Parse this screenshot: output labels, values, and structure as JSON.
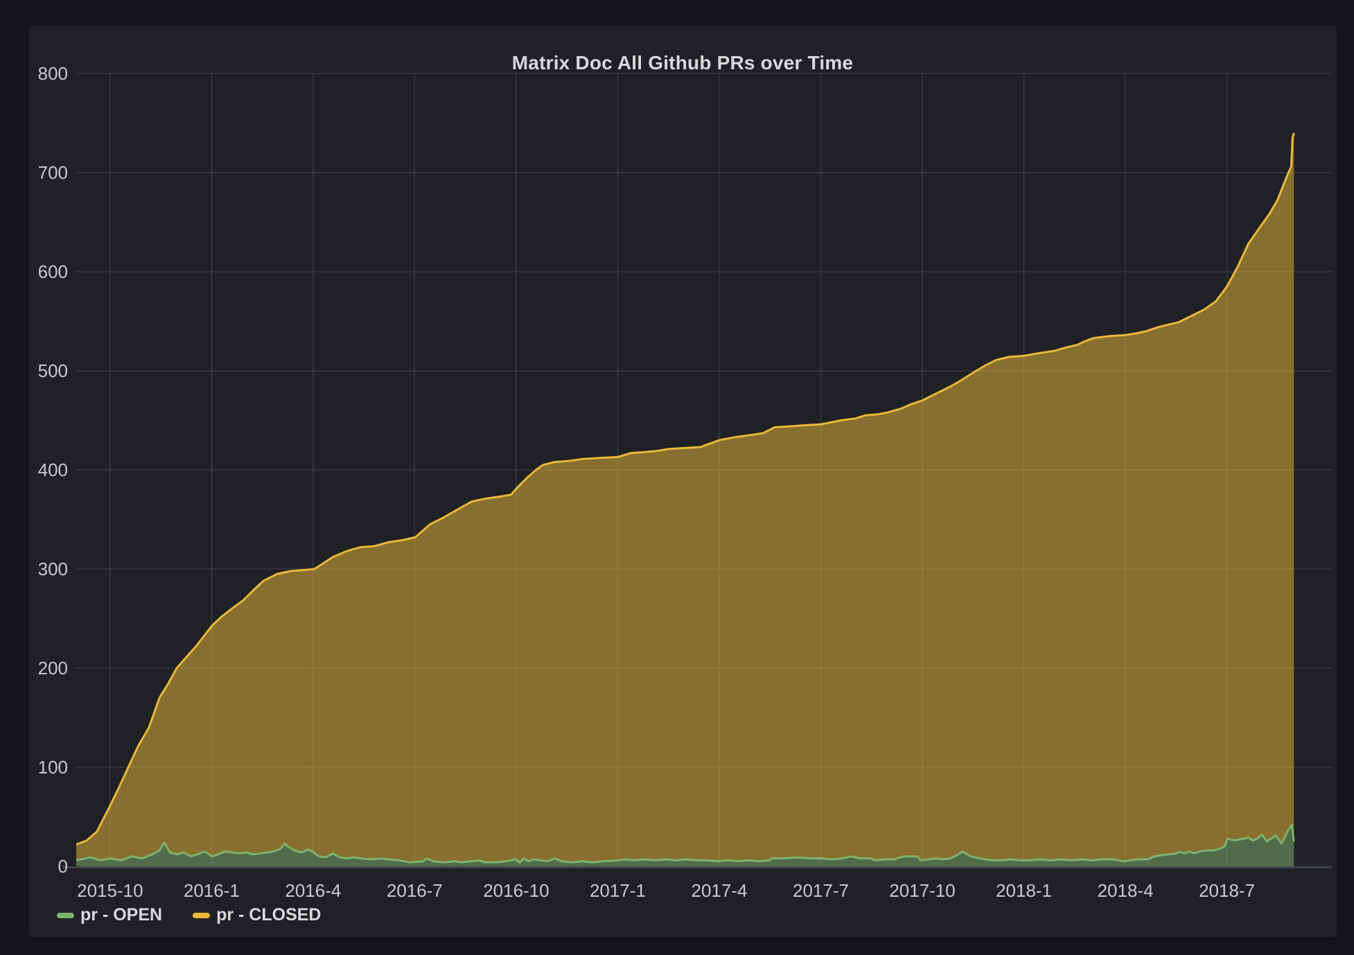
{
  "panel": {
    "title": "Matrix Doc All Github PRs over Time"
  },
  "legend": {
    "items": [
      {
        "label": "pr - OPEN",
        "color": "#7EB26D"
      },
      {
        "label": "pr - CLOSED",
        "color": "#EAB839"
      }
    ]
  },
  "colors": {
    "page_bg": "#141518",
    "panel_bg": "#1f2124",
    "grid": "rgba(255,255,255,0.11)",
    "axis_line": "#404346",
    "axis_text": "#c9cacc",
    "title_text": "#d8d9da",
    "open_line": "#7EB26D",
    "closed_line": "#EAB839",
    "fill_alpha": "0.52"
  },
  "chart_data": {
    "type": "area",
    "stacked": true,
    "title": "Matrix Doc All Github PRs over Time",
    "legend_position": "bottom-left",
    "grid": true,
    "x_axis": {
      "unit": "months since 2015-09",
      "domain": [
        0,
        37.1
      ],
      "data_end": 35.98,
      "ticks": [
        {
          "m": 1,
          "label": "2015-10"
        },
        {
          "m": 4,
          "label": "2016-1"
        },
        {
          "m": 7,
          "label": "2016-4"
        },
        {
          "m": 10,
          "label": "2016-7"
        },
        {
          "m": 13,
          "label": "2016-10"
        },
        {
          "m": 16,
          "label": "2017-1"
        },
        {
          "m": 19,
          "label": "2017-4"
        },
        {
          "m": 22,
          "label": "2017-7"
        },
        {
          "m": 25,
          "label": "2017-10"
        },
        {
          "m": 28,
          "label": "2018-1"
        },
        {
          "m": 31,
          "label": "2018-4"
        },
        {
          "m": 34,
          "label": "2018-7"
        }
      ]
    },
    "y_axis": {
      "domain": [
        0,
        800
      ],
      "tick_step": 100,
      "ticks": [
        0,
        100,
        200,
        300,
        400,
        500,
        600,
        700,
        800
      ]
    },
    "series": [
      {
        "name": "pr - OPEN",
        "color": "#7EB26D",
        "points": [
          [
            0.0,
            6
          ],
          [
            0.41,
            9
          ],
          [
            0.72,
            6
          ],
          [
            1.02,
            8
          ],
          [
            1.33,
            6
          ],
          [
            1.64,
            10
          ],
          [
            1.95,
            8
          ],
          [
            2.25,
            12
          ],
          [
            2.46,
            16
          ],
          [
            2.6,
            24
          ],
          [
            2.77,
            14
          ],
          [
            2.97,
            12
          ],
          [
            3.18,
            14
          ],
          [
            3.38,
            10
          ],
          [
            3.59,
            12
          ],
          [
            3.79,
            15
          ],
          [
            4.02,
            10
          ],
          [
            4.2,
            12
          ],
          [
            4.41,
            15
          ],
          [
            4.61,
            14
          ],
          [
            4.82,
            13
          ],
          [
            5.02,
            14
          ],
          [
            5.23,
            12
          ],
          [
            5.43,
            13
          ],
          [
            5.64,
            14
          ],
          [
            5.84,
            15
          ],
          [
            6.05,
            18
          ],
          [
            6.15,
            23
          ],
          [
            6.25,
            20
          ],
          [
            6.45,
            16
          ],
          [
            6.66,
            14
          ],
          [
            6.86,
            17
          ],
          [
            6.97,
            15
          ],
          [
            7.17,
            10
          ],
          [
            7.38,
            9
          ],
          [
            7.58,
            13
          ],
          [
            7.79,
            9
          ],
          [
            7.99,
            8
          ],
          [
            8.2,
            9
          ],
          [
            8.4,
            8
          ],
          [
            8.71,
            7
          ],
          [
            9.02,
            8
          ],
          [
            9.22,
            7
          ],
          [
            9.53,
            6
          ],
          [
            9.84,
            4
          ],
          [
            10.25,
            5
          ],
          [
            10.35,
            8
          ],
          [
            10.55,
            5
          ],
          [
            10.86,
            4
          ],
          [
            11.21,
            5
          ],
          [
            11.37,
            4
          ],
          [
            11.68,
            5
          ],
          [
            11.89,
            6
          ],
          [
            12.09,
            4
          ],
          [
            12.4,
            4
          ],
          [
            12.7,
            5
          ],
          [
            12.97,
            7
          ],
          [
            13.11,
            4
          ],
          [
            13.22,
            8
          ],
          [
            13.36,
            5
          ],
          [
            13.52,
            7
          ],
          [
            13.73,
            6
          ],
          [
            13.93,
            5
          ],
          [
            14.14,
            8
          ],
          [
            14.34,
            5
          ],
          [
            14.65,
            4
          ],
          [
            14.96,
            5
          ],
          [
            15.27,
            4
          ],
          [
            15.57,
            5
          ],
          [
            16.05,
            6
          ],
          [
            16.19,
            7
          ],
          [
            16.5,
            6
          ],
          [
            16.8,
            7
          ],
          [
            17.11,
            6
          ],
          [
            17.42,
            7
          ],
          [
            17.73,
            6
          ],
          [
            18.03,
            7
          ],
          [
            18.34,
            6
          ],
          [
            18.65,
            6
          ],
          [
            18.95,
            5
          ],
          [
            19.26,
            6
          ],
          [
            19.57,
            5
          ],
          [
            19.88,
            6
          ],
          [
            20.18,
            5
          ],
          [
            20.49,
            6
          ],
          [
            20.55,
            8
          ],
          [
            20.9,
            8
          ],
          [
            21.31,
            9
          ],
          [
            21.72,
            8
          ],
          [
            22.01,
            8
          ],
          [
            22.34,
            7
          ],
          [
            22.64,
            8
          ],
          [
            22.89,
            10
          ],
          [
            23.16,
            8
          ],
          [
            23.46,
            8
          ],
          [
            23.63,
            6
          ],
          [
            23.87,
            7
          ],
          [
            24.18,
            7
          ],
          [
            24.45,
            10
          ],
          [
            24.69,
            10
          ],
          [
            24.86,
            10
          ],
          [
            24.94,
            6
          ],
          [
            25.2,
            7
          ],
          [
            25.41,
            8
          ],
          [
            25.61,
            7
          ],
          [
            25.82,
            8
          ],
          [
            26.02,
            11
          ],
          [
            26.19,
            15
          ],
          [
            26.33,
            12
          ],
          [
            26.43,
            10
          ],
          [
            26.7,
            8
          ],
          [
            27.05,
            6
          ],
          [
            27.36,
            6
          ],
          [
            27.6,
            7
          ],
          [
            27.87,
            6
          ],
          [
            28.18,
            6
          ],
          [
            28.48,
            7
          ],
          [
            28.79,
            6
          ],
          [
            29.1,
            7
          ],
          [
            29.41,
            6
          ],
          [
            29.71,
            7
          ],
          [
            30.02,
            6
          ],
          [
            30.33,
            7
          ],
          [
            30.63,
            7
          ],
          [
            30.94,
            5
          ],
          [
            31.35,
            7
          ],
          [
            31.66,
            7
          ],
          [
            31.86,
            10
          ],
          [
            32.03,
            11
          ],
          [
            32.27,
            12
          ],
          [
            32.52,
            13
          ],
          [
            32.58,
            15
          ],
          [
            32.75,
            13
          ],
          [
            32.89,
            15
          ],
          [
            33.03,
            13
          ],
          [
            33.2,
            15
          ],
          [
            33.4,
            16
          ],
          [
            33.61,
            16
          ],
          [
            33.81,
            18
          ],
          [
            33.93,
            20
          ],
          [
            34.02,
            28
          ],
          [
            34.22,
            26
          ],
          [
            34.36,
            27
          ],
          [
            34.53,
            28
          ],
          [
            34.63,
            29
          ],
          [
            34.77,
            26
          ],
          [
            34.9,
            28
          ],
          [
            35.04,
            32
          ],
          [
            35.18,
            25
          ],
          [
            35.31,
            28
          ],
          [
            35.45,
            31
          ],
          [
            35.61,
            23
          ],
          [
            35.72,
            30
          ],
          [
            35.8,
            36
          ],
          [
            35.88,
            40
          ],
          [
            35.92,
            42
          ],
          [
            35.98,
            25
          ]
        ]
      },
      {
        "name": "pr - CLOSED",
        "color": "#EAB839",
        "note": "points are stacked tops as rendered: OPEN + CLOSED cumulative total",
        "points_total": [
          [
            0.0,
            22
          ],
          [
            0.31,
            26
          ],
          [
            0.61,
            35
          ],
          [
            1.0,
            61
          ],
          [
            1.27,
            80
          ],
          [
            1.54,
            100
          ],
          [
            1.84,
            122
          ],
          [
            2.15,
            140
          ],
          [
            2.46,
            170
          ],
          [
            2.73,
            185
          ],
          [
            2.97,
            200
          ],
          [
            3.28,
            212
          ],
          [
            3.54,
            222
          ],
          [
            4.02,
            243
          ],
          [
            4.3,
            252
          ],
          [
            4.6,
            260
          ],
          [
            4.92,
            268
          ],
          [
            5.22,
            278
          ],
          [
            5.53,
            288
          ],
          [
            5.94,
            295
          ],
          [
            6.35,
            298
          ],
          [
            6.76,
            299
          ],
          [
            7.03,
            300
          ],
          [
            7.27,
            305
          ],
          [
            7.58,
            312
          ],
          [
            7.99,
            318
          ],
          [
            8.4,
            322
          ],
          [
            8.81,
            323
          ],
          [
            9.22,
            327
          ],
          [
            9.63,
            329
          ],
          [
            10.02,
            332
          ],
          [
            10.45,
            345
          ],
          [
            10.86,
            352
          ],
          [
            11.27,
            360
          ],
          [
            11.68,
            368
          ],
          [
            12.09,
            371
          ],
          [
            12.5,
            373
          ],
          [
            12.85,
            375
          ],
          [
            13.03,
            382
          ],
          [
            13.32,
            392
          ],
          [
            13.59,
            400
          ],
          [
            13.79,
            405
          ],
          [
            14.14,
            408
          ],
          [
            14.55,
            409
          ],
          [
            14.96,
            411
          ],
          [
            15.47,
            412
          ],
          [
            16.0,
            413
          ],
          [
            16.39,
            417
          ],
          [
            16.8,
            418
          ],
          [
            17.15,
            419
          ],
          [
            17.48,
            421
          ],
          [
            17.93,
            422
          ],
          [
            18.44,
            423
          ],
          [
            19.0,
            430
          ],
          [
            19.47,
            433
          ],
          [
            19.88,
            435
          ],
          [
            20.29,
            437
          ],
          [
            20.64,
            443
          ],
          [
            21.11,
            444
          ],
          [
            21.52,
            445
          ],
          [
            22.01,
            446
          ],
          [
            22.6,
            450
          ],
          [
            23.05,
            452
          ],
          [
            23.3,
            455
          ],
          [
            23.67,
            456
          ],
          [
            23.98,
            458
          ],
          [
            24.39,
            462
          ],
          [
            24.65,
            466
          ],
          [
            25.0,
            470
          ],
          [
            25.41,
            477
          ],
          [
            25.82,
            484
          ],
          [
            26.13,
            490
          ],
          [
            26.5,
            498
          ],
          [
            26.84,
            505
          ],
          [
            27.19,
            511
          ],
          [
            27.56,
            514
          ],
          [
            27.99,
            515
          ],
          [
            28.48,
            518
          ],
          [
            28.89,
            520
          ],
          [
            29.3,
            524
          ],
          [
            29.57,
            526
          ],
          [
            29.82,
            530
          ],
          [
            30.06,
            533
          ],
          [
            30.53,
            535
          ],
          [
            31.0,
            536
          ],
          [
            31.35,
            538
          ],
          [
            31.62,
            540
          ],
          [
            31.97,
            544
          ],
          [
            32.32,
            547
          ],
          [
            32.58,
            549
          ],
          [
            32.99,
            556
          ],
          [
            33.34,
            562
          ],
          [
            33.67,
            570
          ],
          [
            34.0,
            585
          ],
          [
            34.32,
            605
          ],
          [
            34.63,
            628
          ],
          [
            34.94,
            643
          ],
          [
            35.25,
            658
          ],
          [
            35.49,
            672
          ],
          [
            35.7,
            690
          ],
          [
            35.82,
            700
          ],
          [
            35.9,
            706
          ],
          [
            35.94,
            735
          ],
          [
            35.98,
            740
          ]
        ]
      }
    ]
  }
}
